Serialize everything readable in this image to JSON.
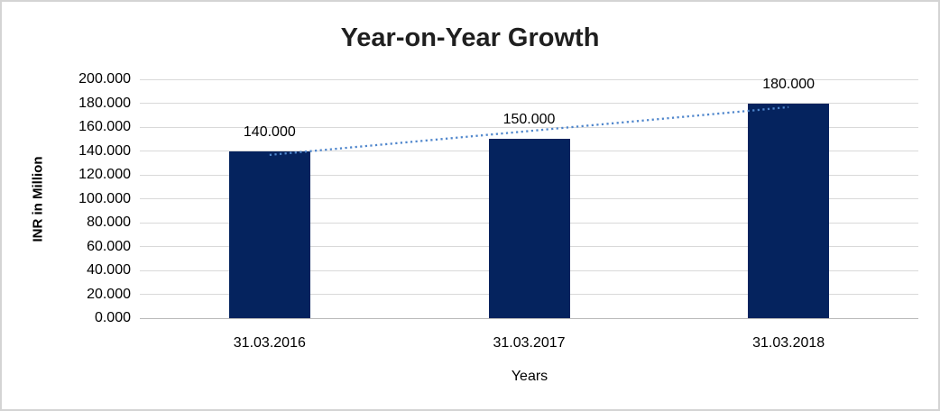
{
  "chart_data": {
    "type": "bar",
    "title": "Year-on-Year Growth",
    "xlabel": "Years",
    "ylabel": "INR in Million",
    "categories": [
      "31.03.2016",
      "31.03.2017",
      "31.03.2018"
    ],
    "values": [
      140,
      150,
      180
    ],
    "value_labels": [
      "140.000",
      "150.000",
      "180.000"
    ],
    "ylim": [
      0,
      200
    ],
    "ytick_step": 20,
    "ytick_labels": [
      "0.000",
      "20.000",
      "40.000",
      "60.000",
      "80.000",
      "100.000",
      "120.000",
      "140.000",
      "160.000",
      "180.000",
      "200.000"
    ],
    "grid": true,
    "legend": false,
    "bar_color": "#05235e",
    "gridline_color": "#d9d9d9",
    "axis_line_color": "#b9b9b9",
    "title_color": "#1f1f1f",
    "trendline": {
      "type": "linear",
      "style": "dotted",
      "color": "#4f86cc",
      "y_start": 136.7,
      "y_end": 176.7
    }
  }
}
